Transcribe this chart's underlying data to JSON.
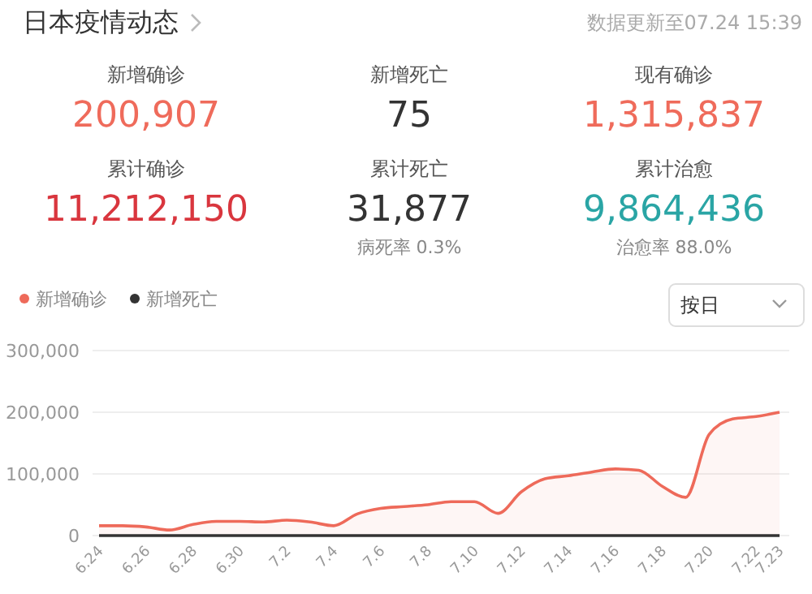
{
  "chart_data": [
    {
      "type": "other",
      "title": "日本疫情动态",
      "subtitle": "数据更新至07.24 15:39",
      "annotations": [
        "新增确诊",
        "200,907",
        "新增死亡",
        "75",
        "现有确诊",
        "1,315,837",
        "累计确诊",
        "11,212,150",
        "累计死亡",
        "31,877",
        "累计治愈",
        "9,864,436",
        "病死率 0.3%",
        "治愈率 88.0%"
      ]
    },
    {
      "type": "line",
      "categories": [
        "6.24",
        null,
        "6.26",
        null,
        "6.28",
        null,
        "6.30",
        null,
        "7.2",
        null,
        "7.4",
        null,
        "7.6",
        null,
        "7.8",
        null,
        "7.10",
        null,
        "7.12",
        null,
        "7.14",
        null,
        "7.16",
        null,
        "7.18",
        null,
        "7.20",
        null,
        "7.22",
        "7.23"
      ],
      "series": [
        {
          "name": "新增确诊",
          "type": "area",
          "color": "#ee6a5a",
          "values": [
            16000,
            16000,
            14000,
            9000,
            18000,
            23000,
            23000,
            22000,
            25000,
            22000,
            16000,
            35000,
            44000,
            47000,
            50000,
            55000,
            55000,
            36000,
            71000,
            92000,
            97000,
            103000,
            108000,
            106000,
            80000,
            62000,
            164000,
            189000,
            193000,
            200000
          ]
        },
        {
          "name": "新增死亡",
          "type": "line",
          "color": "#333333",
          "values": [
            0,
            0,
            0,
            0,
            0,
            0,
            0,
            0,
            0,
            0,
            0,
            0,
            0,
            0,
            0,
            0,
            0,
            0,
            0,
            0,
            0,
            0,
            0,
            0,
            0,
            0,
            0,
            0,
            0,
            0
          ]
        }
      ],
      "ylim": [
        0,
        300000
      ],
      "yticks": [
        0,
        {
          "value": 100000,
          "label": "100,000"
        },
        {
          "value": 200000,
          "label": "200,000"
        },
        {
          "value": 300000,
          "label": "300,000"
        }
      ],
      "grid": "y",
      "legend": "top left",
      "annotations": [
        "按日"
      ]
    }
  ]
}
